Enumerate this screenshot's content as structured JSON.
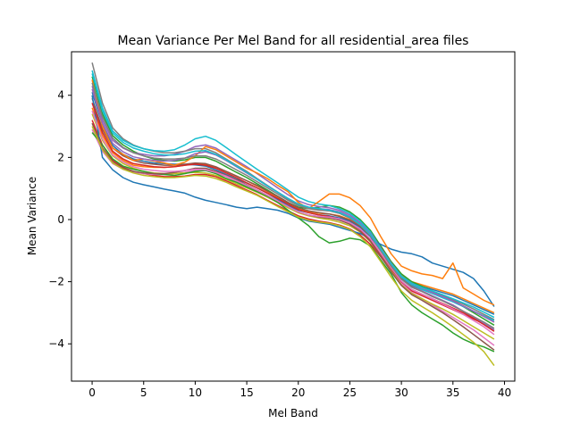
{
  "chart_data": {
    "type": "line",
    "title": "Mean Variance Per Mel Band for all residential_area files",
    "xlabel": "Mel Band",
    "ylabel": "Mean Variance",
    "xlim": [
      -2,
      41
    ],
    "ylim": [
      -5.2,
      5.4
    ],
    "xticks": [
      0,
      5,
      10,
      15,
      20,
      25,
      30,
      35,
      40
    ],
    "yticks": [
      -4,
      -2,
      0,
      2,
      4
    ],
    "xtick_labels": [
      "0",
      "5",
      "10",
      "15",
      "20",
      "25",
      "30",
      "35",
      "40"
    ],
    "ytick_labels": [
      "−4",
      "−2",
      "0",
      "2",
      "4"
    ],
    "grid": false,
    "legend": "none",
    "x": [
      0,
      1,
      2,
      3,
      4,
      5,
      6,
      7,
      8,
      9,
      10,
      11,
      12,
      13,
      14,
      15,
      16,
      17,
      18,
      19,
      20,
      21,
      22,
      23,
      24,
      25,
      26,
      27,
      28,
      29,
      30,
      31,
      32,
      33,
      34,
      35,
      36,
      37,
      38,
      39
    ],
    "color_cycle": [
      "#1f77b4",
      "#ff7f0e",
      "#2ca02c",
      "#d62728",
      "#9467bd",
      "#8c564b",
      "#e377c2",
      "#7f7f7f",
      "#bcbd22",
      "#17becf"
    ],
    "series": [
      {
        "values": [
          4.1,
          3.05,
          2.38,
          2.1,
          1.95,
          1.88,
          1.82,
          1.8,
          1.78,
          1.78,
          1.76,
          1.72,
          1.6,
          1.45,
          1.3,
          1.18,
          1.02,
          0.85,
          0.65,
          0.45,
          0.3,
          0.22,
          0.15,
          0.12,
          0.05,
          -0.05,
          -0.25,
          -0.55,
          -1.0,
          -1.45,
          -1.85,
          -2.05,
          -2.15,
          -2.25,
          -2.35,
          -2.45,
          -2.6,
          -2.75,
          -2.9,
          -3.05
        ]
      },
      {
        "values": [
          3.6,
          2.7,
          2.15,
          1.9,
          1.75,
          1.7,
          1.68,
          1.68,
          1.7,
          1.75,
          1.8,
          1.78,
          1.68,
          1.55,
          1.4,
          1.25,
          1.08,
          0.9,
          0.72,
          0.52,
          0.35,
          0.25,
          0.2,
          0.18,
          0.12,
          0.0,
          -0.2,
          -0.5,
          -0.95,
          -1.4,
          -1.8,
          -2.0,
          -2.1,
          -2.2,
          -2.3,
          -2.4,
          -2.55,
          -2.7,
          -2.85,
          -3.0
        ]
      },
      {
        "values": [
          4.6,
          3.4,
          2.7,
          2.4,
          2.2,
          2.05,
          1.95,
          1.9,
          1.88,
          1.92,
          2.0,
          2.0,
          1.88,
          1.7,
          1.52,
          1.35,
          1.15,
          0.95,
          0.75,
          0.55,
          0.4,
          0.35,
          0.4,
          0.45,
          0.4,
          0.25,
          0.0,
          -0.35,
          -0.85,
          -1.35,
          -1.75,
          -2.0,
          -2.15,
          -2.3,
          -2.45,
          -2.6,
          -2.8,
          -3.0,
          -3.2,
          -3.4
        ]
      },
      {
        "values": [
          3.2,
          2.4,
          1.9,
          1.68,
          1.55,
          1.48,
          1.42,
          1.38,
          1.38,
          1.4,
          1.45,
          1.45,
          1.38,
          1.25,
          1.1,
          0.95,
          0.8,
          0.62,
          0.45,
          0.28,
          0.12,
          0.02,
          -0.05,
          -0.1,
          -0.18,
          -0.3,
          -0.5,
          -0.8,
          -1.2,
          -1.65,
          -2.05,
          -2.3,
          -2.45,
          -2.6,
          -2.75,
          -2.9,
          -3.05,
          -3.2,
          -3.35,
          -3.55
        ]
      },
      {
        "values": [
          4.3,
          3.2,
          2.55,
          2.3,
          2.15,
          2.1,
          2.05,
          2.05,
          2.1,
          2.2,
          2.35,
          2.4,
          2.3,
          2.1,
          1.9,
          1.7,
          1.48,
          1.25,
          1.02,
          0.8,
          0.6,
          0.48,
          0.42,
          0.38,
          0.3,
          0.15,
          -0.1,
          -0.45,
          -0.95,
          -1.45,
          -1.9,
          -2.15,
          -2.3,
          -2.45,
          -2.6,
          -2.75,
          -2.95,
          -3.15,
          -3.35,
          -3.55
        ]
      },
      {
        "values": [
          3.9,
          2.9,
          2.3,
          2.05,
          1.9,
          1.82,
          1.78,
          1.75,
          1.75,
          1.78,
          1.82,
          1.8,
          1.7,
          1.55,
          1.4,
          1.25,
          1.1,
          0.92,
          0.75,
          0.55,
          0.38,
          0.28,
          0.22,
          0.18,
          0.1,
          -0.02,
          -0.22,
          -0.52,
          -0.98,
          -1.45,
          -1.88,
          -2.12,
          -2.25,
          -2.38,
          -2.5,
          -2.62,
          -2.78,
          -2.95,
          -3.12,
          -3.3
        ]
      },
      {
        "values": [
          2.9,
          2.2,
          1.8,
          1.62,
          1.52,
          1.48,
          1.45,
          1.45,
          1.48,
          1.52,
          1.58,
          1.58,
          1.5,
          1.38,
          1.22,
          1.08,
          0.92,
          0.75,
          0.58,
          0.4,
          0.22,
          0.12,
          0.05,
          0.0,
          -0.08,
          -0.2,
          -0.4,
          -0.7,
          -1.15,
          -1.62,
          -2.05,
          -2.35,
          -2.55,
          -2.75,
          -2.95,
          -3.15,
          -3.35,
          -3.55,
          -3.8,
          -4.05
        ]
      },
      {
        "values": [
          5.05,
          3.75,
          2.95,
          2.6,
          2.4,
          2.28,
          2.2,
          2.15,
          2.15,
          2.2,
          2.28,
          2.28,
          2.15,
          1.95,
          1.75,
          1.55,
          1.32,
          1.1,
          0.88,
          0.66,
          0.48,
          0.38,
          0.32,
          0.28,
          0.2,
          0.05,
          -0.18,
          -0.5,
          -0.98,
          -1.45,
          -1.85,
          -2.08,
          -2.2,
          -2.32,
          -2.45,
          -2.58,
          -2.72,
          -2.88,
          -3.05,
          -3.22
        ]
      },
      {
        "values": [
          3.4,
          2.55,
          2.05,
          1.8,
          1.65,
          1.55,
          1.5,
          1.48,
          1.48,
          1.5,
          1.52,
          1.5,
          1.42,
          1.3,
          1.15,
          1.02,
          0.88,
          0.72,
          0.55,
          0.38,
          0.22,
          0.12,
          0.05,
          0.0,
          -0.08,
          -0.2,
          -0.4,
          -0.72,
          -1.18,
          -1.65,
          -2.1,
          -2.38,
          -2.55,
          -2.72,
          -2.88,
          -3.05,
          -3.25,
          -3.45,
          -3.65,
          -3.85
        ]
      },
      {
        "values": [
          4.8,
          3.6,
          2.85,
          2.55,
          2.38,
          2.28,
          2.22,
          2.2,
          2.25,
          2.4,
          2.6,
          2.68,
          2.55,
          2.32,
          2.08,
          1.85,
          1.62,
          1.4,
          1.18,
          0.95,
          0.72,
          0.58,
          0.5,
          0.45,
          0.35,
          0.2,
          -0.05,
          -0.4,
          -0.92,
          -1.42,
          -1.85,
          -2.1,
          -2.25,
          -2.38,
          -2.52,
          -2.65,
          -2.8,
          -2.95,
          -3.1,
          -3.25
        ]
      },
      {
        "values": [
          4.0,
          2.0,
          1.6,
          1.35,
          1.2,
          1.12,
          1.05,
          0.98,
          0.92,
          0.85,
          0.72,
          0.62,
          0.55,
          0.48,
          0.4,
          0.35,
          0.4,
          0.35,
          0.3,
          0.2,
          0.05,
          -0.05,
          -0.1,
          -0.15,
          -0.25,
          -0.35,
          -0.45,
          -0.62,
          -0.8,
          -0.95,
          -1.05,
          -1.1,
          -1.2,
          -1.4,
          -1.5,
          -1.6,
          -1.7,
          -1.9,
          -2.3,
          -2.8
        ]
      },
      {
        "values": [
          4.5,
          3.0,
          2.3,
          2.1,
          1.9,
          1.95,
          1.88,
          1.82,
          1.75,
          1.85,
          2.05,
          2.35,
          2.25,
          2.05,
          1.85,
          1.65,
          1.5,
          1.32,
          1.1,
          0.9,
          0.55,
          0.35,
          0.58,
          0.82,
          0.82,
          0.7,
          0.45,
          0.05,
          -0.55,
          -1.1,
          -1.5,
          -1.65,
          -1.75,
          -1.8,
          -1.9,
          -1.4,
          -2.2,
          -2.4,
          -2.6,
          -2.75
        ]
      },
      {
        "values": [
          2.8,
          2.4,
          1.95,
          1.72,
          1.62,
          1.55,
          1.48,
          1.45,
          1.42,
          1.48,
          1.55,
          1.58,
          1.48,
          1.32,
          1.2,
          1.05,
          0.9,
          0.75,
          0.55,
          0.3,
          0.05,
          -0.2,
          -0.55,
          -0.75,
          -0.7,
          -0.6,
          -0.65,
          -0.85,
          -1.3,
          -1.75,
          -2.35,
          -2.75,
          -3.0,
          -3.2,
          -3.4,
          -3.65,
          -3.85,
          -4.0,
          -4.1,
          -4.25
        ]
      },
      {
        "values": [
          3.75,
          2.8,
          2.2,
          1.95,
          1.8,
          1.75,
          1.7,
          1.68,
          1.7,
          1.75,
          1.78,
          1.75,
          1.65,
          1.5,
          1.35,
          1.18,
          1.02,
          0.85,
          0.68,
          0.5,
          0.32,
          0.22,
          0.15,
          0.1,
          0.02,
          -0.1,
          -0.32,
          -0.65,
          -1.1,
          -1.58,
          -2.0,
          -2.25,
          -2.4,
          -2.55,
          -2.7,
          -2.85,
          -3.0,
          -3.18,
          -3.38,
          -3.6
        ]
      },
      {
        "values": [
          4.2,
          3.1,
          2.45,
          2.18,
          2.02,
          1.95,
          1.9,
          1.88,
          1.9,
          1.98,
          2.12,
          2.18,
          2.08,
          1.9,
          1.7,
          1.5,
          1.3,
          1.08,
          0.88,
          0.68,
          0.5,
          0.4,
          0.35,
          0.32,
          0.25,
          0.1,
          -0.12,
          -0.45,
          -0.92,
          -1.4,
          -1.82,
          -2.06,
          -2.2,
          -2.35,
          -2.48,
          -2.62,
          -2.78,
          -2.95,
          -3.12,
          -3.3
        ]
      },
      {
        "values": [
          3.1,
          2.3,
          1.85,
          1.65,
          1.55,
          1.5,
          1.48,
          1.48,
          1.52,
          1.58,
          1.65,
          1.65,
          1.55,
          1.42,
          1.28,
          1.12,
          0.95,
          0.78,
          0.6,
          0.42,
          0.25,
          0.15,
          0.08,
          0.05,
          -0.02,
          -0.15,
          -0.38,
          -0.7,
          -1.18,
          -1.68,
          -2.12,
          -2.42,
          -2.6,
          -2.8,
          -3.0,
          -3.22,
          -3.45,
          -3.7,
          -3.95,
          -4.2
        ]
      },
      {
        "values": [
          3.5,
          2.6,
          2.08,
          1.85,
          1.7,
          1.62,
          1.58,
          1.55,
          1.55,
          1.58,
          1.62,
          1.6,
          1.52,
          1.4,
          1.25,
          1.1,
          0.95,
          0.78,
          0.6,
          0.42,
          0.25,
          0.15,
          0.1,
          0.08,
          0.02,
          -0.1,
          -0.3,
          -0.62,
          -1.08,
          -1.55,
          -1.98,
          -2.25,
          -2.4,
          -2.55,
          -2.72,
          -2.88,
          -3.05,
          -3.25,
          -3.45,
          -3.7
        ]
      },
      {
        "values": [
          4.4,
          3.3,
          2.62,
          2.32,
          2.15,
          2.05,
          1.98,
          1.95,
          1.95,
          1.98,
          2.05,
          2.05,
          1.95,
          1.78,
          1.6,
          1.42,
          1.22,
          1.02,
          0.82,
          0.62,
          0.45,
          0.35,
          0.3,
          0.28,
          0.2,
          0.05,
          -0.18,
          -0.52,
          -1.0,
          -1.5,
          -1.92,
          -2.18,
          -2.32,
          -2.48,
          -2.62,
          -2.78,
          -2.95,
          -3.12,
          -3.3,
          -3.5
        ]
      },
      {
        "values": [
          3.0,
          2.25,
          1.82,
          1.62,
          1.5,
          1.42,
          1.38,
          1.35,
          1.35,
          1.38,
          1.42,
          1.4,
          1.32,
          1.2,
          1.05,
          0.92,
          0.78,
          0.6,
          0.42,
          0.25,
          0.08,
          -0.02,
          -0.08,
          -0.12,
          -0.2,
          -0.32,
          -0.55,
          -0.88,
          -1.35,
          -1.85,
          -2.3,
          -2.6,
          -2.8,
          -3.0,
          -3.22,
          -3.45,
          -3.7,
          -3.95,
          -4.25,
          -4.7
        ]
      },
      {
        "values": [
          4.7,
          3.5,
          2.78,
          2.48,
          2.3,
          2.2,
          2.12,
          2.08,
          2.08,
          2.12,
          2.2,
          2.22,
          2.1,
          1.92,
          1.72,
          1.52,
          1.3,
          1.08,
          0.88,
          0.68,
          0.5,
          0.4,
          0.35,
          0.3,
          0.22,
          0.08,
          -0.15,
          -0.48,
          -0.95,
          -1.42,
          -1.82,
          -2.05,
          -2.18,
          -2.3,
          -2.42,
          -2.55,
          -2.68,
          -2.82,
          -2.98,
          -3.15
        ]
      }
    ]
  }
}
